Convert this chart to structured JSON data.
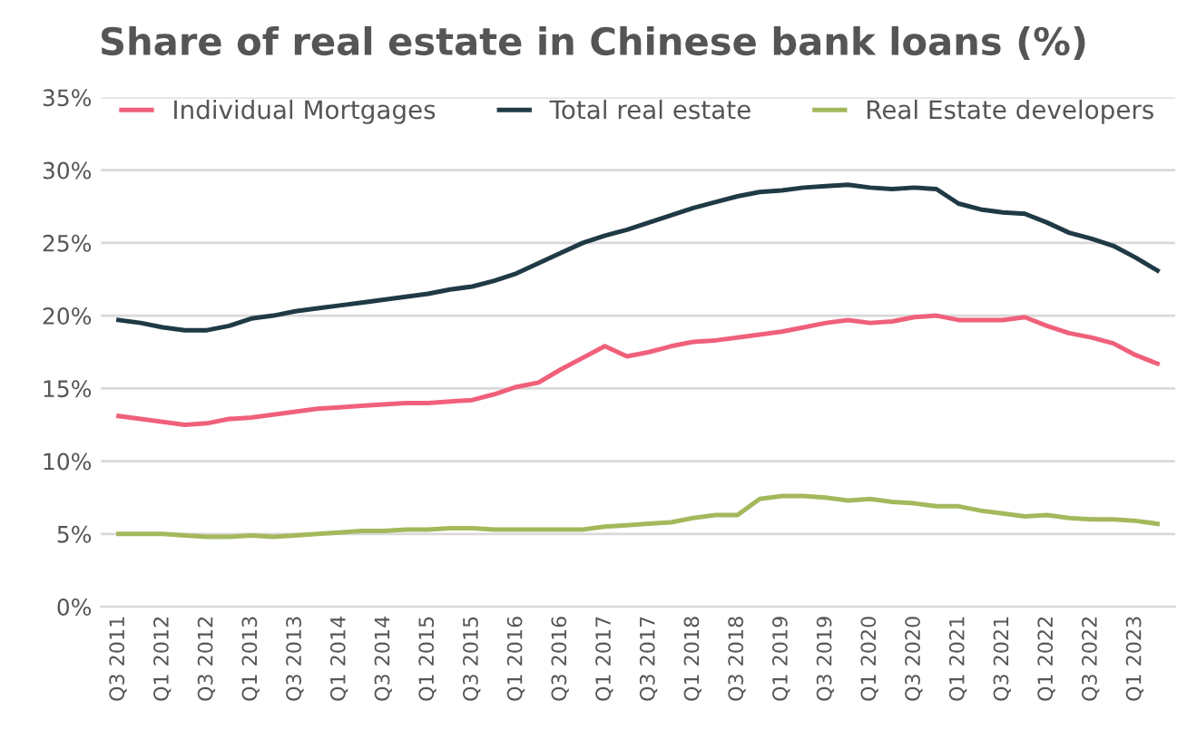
{
  "chart_data": {
    "type": "line",
    "title": "Share of real estate in Chinese bank loans (%)",
    "categories": [
      "Q3 2011",
      null,
      "Q1 2012",
      null,
      "Q3 2012",
      null,
      "Q1 2013",
      null,
      "Q3 2013",
      null,
      "Q1 2014",
      null,
      "Q3 2014",
      null,
      "Q1 2015",
      null,
      "Q3 2015",
      null,
      "Q1 2016",
      null,
      "Q3 2016",
      null,
      "Q1 2017",
      null,
      "Q3 2017",
      null,
      "Q1 2018",
      null,
      "Q3 2018",
      null,
      "Q1 2019",
      null,
      "Q3 2019",
      null,
      "Q1 2020",
      null,
      "Q3 2020",
      null,
      "Q1 2021",
      null,
      "Q3 2021",
      null,
      "Q1 2022",
      null,
      "Q3 2022",
      null,
      "Q1 2023",
      null
    ],
    "series": [
      {
        "name": "Individual Mortgages",
        "color": "#f0607a",
        "values": [
          13.1,
          12.9,
          12.7,
          12.5,
          12.6,
          12.9,
          13.0,
          13.2,
          13.4,
          13.6,
          13.7,
          13.8,
          13.9,
          14.0,
          14.0,
          14.1,
          14.2,
          14.6,
          15.1,
          15.4,
          16.3,
          17.1,
          17.9,
          17.2,
          17.5,
          17.9,
          18.2,
          18.3,
          18.5,
          18.7,
          18.9,
          19.2,
          19.5,
          19.7,
          19.5,
          19.6,
          19.9,
          20.0,
          19.7,
          19.7,
          19.7,
          19.9,
          19.3,
          18.8,
          18.5,
          18.1,
          17.3,
          16.7
        ]
      },
      {
        "name": "Total real estate",
        "color": "#1f3a44",
        "values": [
          19.7,
          19.5,
          19.2,
          19.0,
          19.0,
          19.3,
          19.8,
          20.0,
          20.3,
          20.5,
          20.7,
          20.9,
          21.1,
          21.3,
          21.5,
          21.8,
          22.0,
          22.4,
          22.9,
          23.6,
          24.3,
          25.0,
          25.5,
          25.9,
          26.4,
          26.9,
          27.4,
          27.8,
          28.2,
          28.5,
          28.6,
          28.8,
          28.9,
          29.0,
          28.8,
          28.7,
          28.8,
          28.7,
          27.7,
          27.3,
          27.1,
          27.0,
          26.4,
          25.7,
          25.3,
          24.8,
          24.0,
          23.1
        ]
      },
      {
        "name": "Real Estate developers",
        "color": "#a4b85c",
        "values": [
          5.0,
          5.0,
          5.0,
          4.9,
          4.8,
          4.8,
          4.9,
          4.8,
          4.9,
          5.0,
          5.1,
          5.2,
          5.2,
          5.3,
          5.3,
          5.4,
          5.4,
          5.3,
          5.3,
          5.3,
          5.3,
          5.3,
          5.5,
          5.6,
          5.7,
          5.8,
          6.1,
          6.3,
          6.3,
          7.4,
          7.6,
          7.6,
          7.5,
          7.3,
          7.4,
          7.2,
          7.1,
          6.9,
          6.9,
          6.6,
          6.4,
          6.2,
          6.3,
          6.1,
          6.0,
          6.0,
          5.9,
          5.7
        ]
      }
    ],
    "ylim": [
      0,
      35
    ],
    "yticks": [
      {
        "value": 0,
        "label": "0%"
      },
      {
        "value": 5,
        "label": "5%"
      },
      {
        "value": 10,
        "label": "10%"
      },
      {
        "value": 15,
        "label": "15%"
      },
      {
        "value": 20,
        "label": "20%"
      },
      {
        "value": 25,
        "label": "25%"
      },
      {
        "value": 30,
        "label": "30%"
      },
      {
        "value": 35,
        "label": "35%"
      }
    ],
    "grid": "y",
    "legend": "top",
    "marker": "none",
    "line_style": "solid"
  }
}
